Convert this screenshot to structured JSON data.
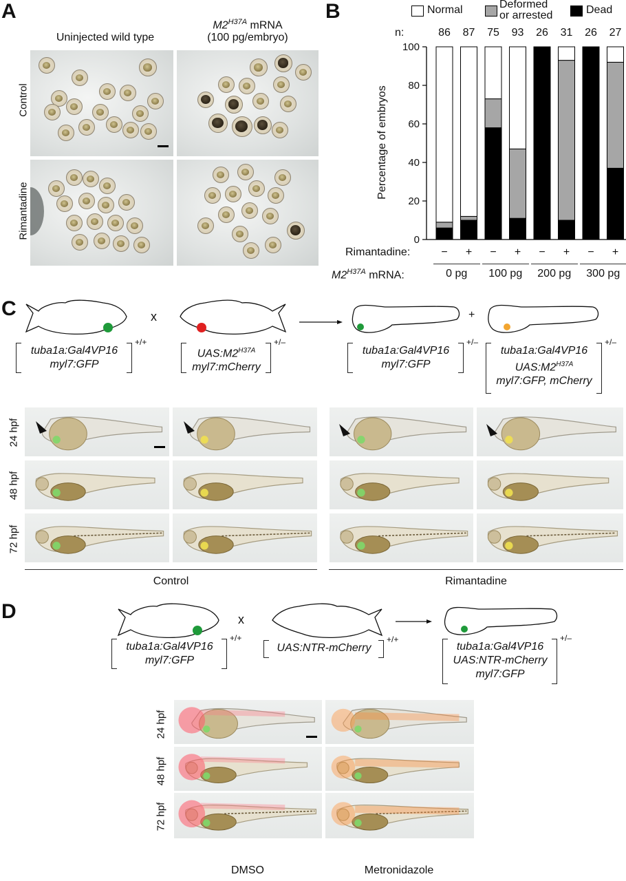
{
  "panels": {
    "a": {
      "letter": "A",
      "col_titles": [
        "Uninjected wild type",
        "M2",
        "H37A",
        " mRNA",
        "(100 pg/embryo)"
      ],
      "row_labels": [
        "Control",
        "Rimantadine"
      ]
    },
    "b": {
      "letter": "B",
      "legend": [
        "Normal",
        "Deformed",
        "or arrested",
        "Dead"
      ],
      "n_label": "n:",
      "n_values": [
        "86",
        "87",
        "75",
        "93",
        "26",
        "31",
        "26",
        "27"
      ],
      "ylabel": "Percentage of embryos",
      "yticks": [
        "0",
        "20",
        "40",
        "60",
        "80",
        "100"
      ],
      "rimantadine_label": "Rimantadine:",
      "rim_signs": [
        "−",
        "+",
        "−",
        "+",
        "−",
        "+",
        "−",
        "+"
      ],
      "mrna_label_main": "M2",
      "mrna_label_sup": "H37A",
      "mrna_label_tail": " mRNA:",
      "dose_labels": [
        "0 pg",
        "100 pg",
        "200 pg",
        "300 pg"
      ]
    },
    "c": {
      "letter": "C",
      "cross_x": "x",
      "plus": "+",
      "geno1": [
        "tuba1a:Gal4VP16",
        "myl7:GFP"
      ],
      "geno1_sup": "+/+",
      "geno2_a": "UAS:M2",
      "geno2_a_sup": "H37A",
      "geno2_b": "myl7:mCherry",
      "geno2_sup": "+/–",
      "geno3": [
        "tuba1a:Gal4VP16",
        "myl7:GFP"
      ],
      "geno3_sup": "+/–",
      "geno4_a": "tuba1a:Gal4VP16",
      "geno4_b": "UAS:M2",
      "geno4_b_sup": "H37A",
      "geno4_c": "myl7:GFP, mCherry",
      "geno4_sup": "+/–",
      "row_labels": [
        "24 hpf",
        "48 hpf",
        "72 hpf"
      ],
      "group_labels": [
        "Control",
        "Rimantadine"
      ]
    },
    "d": {
      "letter": "D",
      "cross_x": "x",
      "geno1": [
        "tuba1a:Gal4VP16",
        "myl7:GFP"
      ],
      "geno1_sup": "+/+",
      "geno2": "UAS:NTR-mCherry",
      "geno2_sup": "+/+",
      "geno3": [
        "tuba1a:Gal4VP16",
        "UAS:NTR-mCherry",
        "myl7:GFP"
      ],
      "geno3_sup": "+/–",
      "row_labels": [
        "24 hpf",
        "48 hpf",
        "72 hpf"
      ],
      "col_labels": [
        "DMSO",
        "Metronidazole"
      ]
    }
  },
  "chart_data": {
    "type": "bar",
    "stacked": true,
    "categories": [
      "0 pg −",
      "0 pg +",
      "100 pg −",
      "100 pg +",
      "200 pg −",
      "200 pg +",
      "300 pg −",
      "300 pg +"
    ],
    "series": [
      {
        "name": "Dead",
        "color": "#000000",
        "values": [
          6,
          10,
          58,
          11,
          100,
          10,
          100,
          37
        ]
      },
      {
        "name": "Deformed or arrested",
        "color": "#a6a6a6",
        "values": [
          3,
          2,
          15,
          36,
          0,
          83,
          0,
          55
        ]
      },
      {
        "name": "Normal",
        "color": "#ffffff",
        "values": [
          91,
          88,
          27,
          53,
          0,
          7,
          0,
          8
        ]
      }
    ],
    "ylabel": "Percentage of embryos",
    "ylim": [
      0,
      100
    ]
  }
}
